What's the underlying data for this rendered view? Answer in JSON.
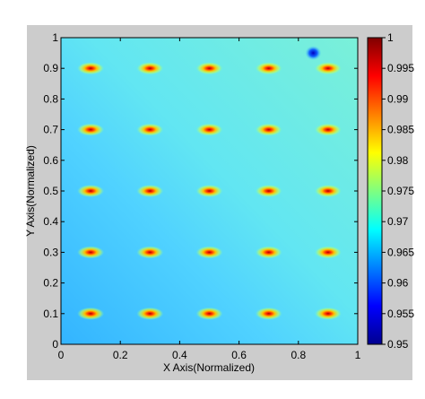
{
  "chart_data": {
    "type": "heatmap",
    "title": "",
    "xlabel": "X Axis(Normalized)",
    "ylabel": "Y Axis(Normalized)",
    "xlim": [
      0,
      1
    ],
    "ylim": [
      0,
      1
    ],
    "x_ticks": [
      "0",
      "0.2",
      "0.4",
      "0.6",
      "0.8",
      "1"
    ],
    "y_ticks": [
      "0",
      "0.1",
      "0.2",
      "0.3",
      "0.4",
      "0.5",
      "0.6",
      "0.7",
      "0.8",
      "0.9",
      "1"
    ],
    "colorbar": {
      "min": 0.95,
      "max": 1.0,
      "ticks": [
        "0.95",
        "0.955",
        "0.96",
        "0.965",
        "0.97",
        "0.975",
        "0.98",
        "0.985",
        "0.99",
        "0.995",
        "1"
      ],
      "colormap": "jet"
    },
    "grid": false,
    "hotspots": {
      "x": [
        0.1,
        0.3,
        0.5,
        0.7,
        0.9
      ],
      "y": [
        0.1,
        0.3,
        0.5,
        0.7,
        0.9
      ],
      "peak_value": 1.0
    },
    "background_field": {
      "description_free_values": true,
      "left_bottom_value": 0.962,
      "right_value": 0.972
    },
    "local_minimum": {
      "x": 0.85,
      "y": 0.95,
      "value": 0.955
    }
  }
}
